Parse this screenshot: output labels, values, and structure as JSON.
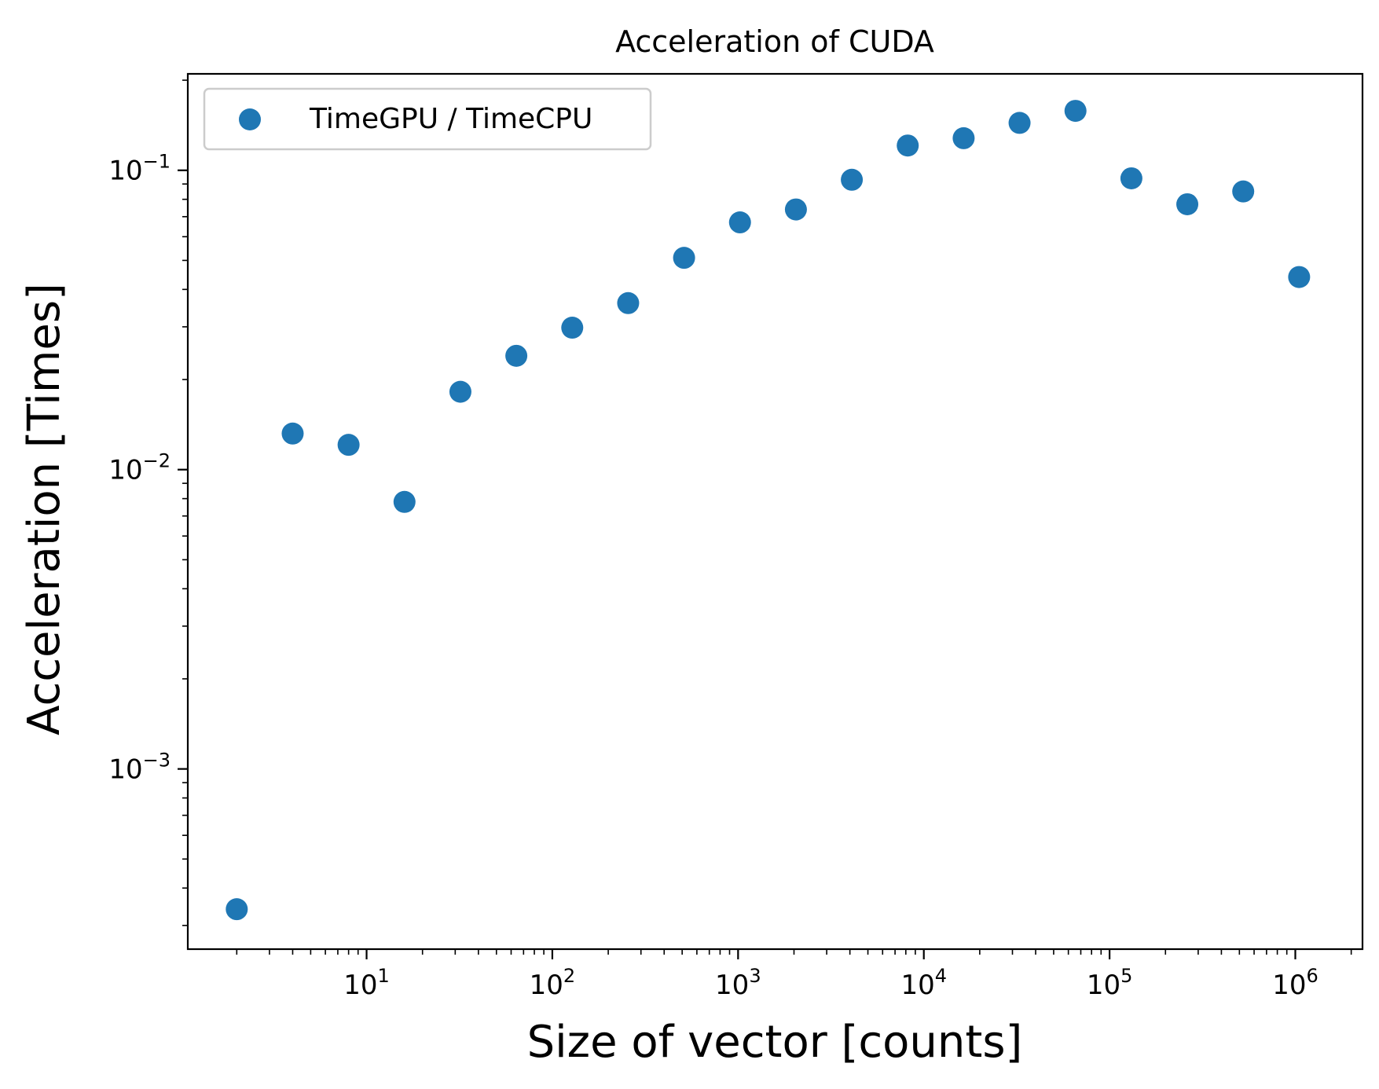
{
  "chart_data": {
    "type": "scatter",
    "title": "Acceleration of CUDA",
    "xlabel": "Size of vector [counts]",
    "ylabel": "Acceleration [Times]",
    "xscale": "log",
    "yscale": "log",
    "xlim": [
      1.09,
      2300000
    ],
    "ylim": [
      0.00025,
      0.21
    ],
    "x_ticks": [
      {
        "value": 10,
        "base": "10",
        "exp": "1"
      },
      {
        "value": 100,
        "base": "10",
        "exp": "2"
      },
      {
        "value": 1000,
        "base": "10",
        "exp": "3"
      },
      {
        "value": 10000,
        "base": "10",
        "exp": "4"
      },
      {
        "value": 100000,
        "base": "10",
        "exp": "5"
      },
      {
        "value": 1000000,
        "base": "10",
        "exp": "6"
      }
    ],
    "y_ticks": [
      {
        "value": 0.001,
        "base": "10",
        "exp": "−3"
      },
      {
        "value": 0.01,
        "base": "10",
        "exp": "−2"
      },
      {
        "value": 0.1,
        "base": "10",
        "exp": "−1"
      }
    ],
    "legend_position": "top-left",
    "grid": false,
    "series": [
      {
        "name": "TimeGPU / TimeCPU",
        "color": "#1f77b4",
        "x": [
          2,
          4,
          8,
          16,
          32,
          64,
          128,
          256,
          512,
          1024,
          2048,
          4096,
          8192,
          16384,
          32768,
          65536,
          131072,
          262144,
          524288,
          1048576
        ],
        "y": [
          0.00034,
          0.0132,
          0.0121,
          0.0078,
          0.0182,
          0.024,
          0.0298,
          0.036,
          0.051,
          0.067,
          0.074,
          0.093,
          0.121,
          0.128,
          0.144,
          0.158,
          0.094,
          0.077,
          0.085,
          0.044
        ]
      }
    ]
  }
}
